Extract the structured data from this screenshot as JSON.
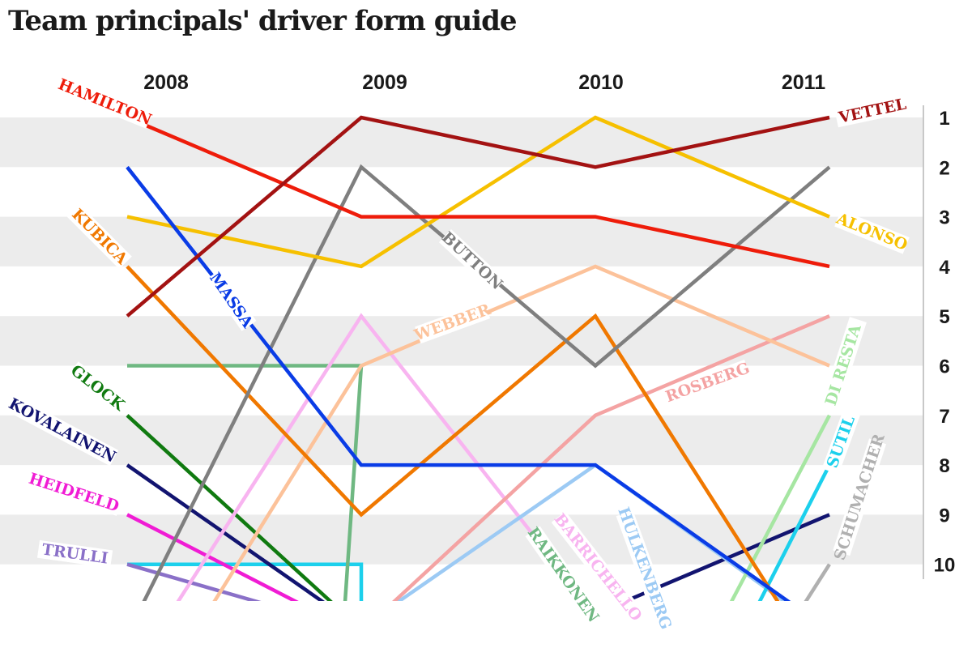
{
  "title": "Team principals' driver form guide",
  "chart_data": {
    "type": "line",
    "title": "Team principals' driver form guide",
    "x": [
      "2008",
      "2009",
      "2010",
      "2011"
    ],
    "y_axis": {
      "ticks": [
        1,
        2,
        3,
        4,
        5,
        6,
        7,
        8,
        9,
        10
      ],
      "reversed": true,
      "side": "right",
      "meaning": "ranking position"
    },
    "y_range_drawn": [
      1,
      11
    ],
    "grid": "alternating horizontal bands",
    "series": [
      {
        "name": "VETTEL",
        "color": "#a31212",
        "values": [
          5,
          1,
          2,
          1
        ]
      },
      {
        "name": "HAMILTON",
        "color": "#ee1c0a",
        "values": [
          1,
          3,
          3,
          4
        ]
      },
      {
        "name": "ALONSO",
        "color": "#f6c000",
        "values": [
          3,
          4,
          1,
          3
        ]
      },
      {
        "name": "BUTTON",
        "color": "#7f7f7f",
        "values": [
          11,
          2,
          6,
          2
        ]
      },
      {
        "name": "MASSA",
        "color": "#0a3ce6",
        "values": [
          2,
          8,
          8,
          11
        ]
      },
      {
        "name": "KUBICA",
        "color": "#f07800",
        "values": [
          4,
          9,
          5,
          11
        ]
      },
      {
        "name": "WEBBER",
        "color": "#fcc29a",
        "values": [
          11,
          6,
          4,
          6
        ]
      },
      {
        "name": "ROSBERG",
        "color": "#f4a3a3",
        "values": [
          11,
          11,
          7,
          5
        ]
      },
      {
        "name": "RAIKKONEN",
        "color": "#6fb882",
        "values": [
          6,
          6,
          11,
          null
        ]
      },
      {
        "name": "BARRICHELLO",
        "color": "#f8b4f0",
        "values": [
          11,
          5,
          11,
          null
        ]
      },
      {
        "name": "HULKENBERG",
        "color": "#9ccaf4",
        "values": [
          null,
          11,
          8,
          11
        ]
      },
      {
        "name": "GLOCK",
        "color": "#107a10",
        "values": [
          7,
          11,
          null,
          null
        ]
      },
      {
        "name": "KOVALAINEN",
        "color": "#121470",
        "values": [
          8,
          11,
          null,
          null
        ]
      },
      {
        "name": "HEIDFELD",
        "color": "#f01cd4",
        "values": [
          9,
          11,
          null,
          null
        ]
      },
      {
        "name": "TRULLI",
        "color": "#8a70c8",
        "values": [
          10,
          11,
          null,
          null
        ]
      },
      {
        "name": "DI RESTA",
        "color": "#a6e6a2",
        "values": [
          null,
          null,
          11,
          7
        ]
      },
      {
        "name": "SUTIL",
        "color": "#1cd0ec",
        "values": [
          null,
          null,
          11,
          8
        ]
      },
      {
        "name": "SCHUMACHER",
        "color": "#b0b0b0",
        "values": [
          null,
          null,
          11,
          10
        ]
      }
    ],
    "extra_segments": [
      {
        "color": "#1cd0ec",
        "from": [
          "2008",
          10
        ],
        "mid": [
          "2009",
          10
        ],
        "to": [
          "2009",
          11
        ]
      },
      {
        "color": "#121470",
        "from": [
          "2010",
          11
        ],
        "to": [
          "2011",
          9
        ]
      }
    ],
    "labels": [
      {
        "text": "VETTEL",
        "series": "VETTEL"
      },
      {
        "text": "HAMILTON",
        "series": "HAMILTON"
      },
      {
        "text": "ALONSO",
        "series": "ALONSO"
      },
      {
        "text": "BUTTON",
        "series": "BUTTON"
      },
      {
        "text": "MASSA",
        "series": "MASSA"
      },
      {
        "text": "KUBICA",
        "series": "KUBICA"
      },
      {
        "text": "WEBBER",
        "series": "WEBBER"
      },
      {
        "text": "ROSBERG",
        "series": "ROSBERG"
      },
      {
        "text": "RAIKKONEN",
        "series": "RAIKKONEN"
      },
      {
        "text": "BARRICHELLO",
        "series": "BARRICHELLO"
      },
      {
        "text": "HULKENBERG",
        "series": "HULKENBERG"
      },
      {
        "text": "GLOCK",
        "series": "GLOCK"
      },
      {
        "text": "KOVALAINEN",
        "series": "KOVALAINEN"
      },
      {
        "text": "HEIDFELD",
        "series": "HEIDFELD"
      },
      {
        "text": "TRULLI",
        "series": "TRULLI"
      },
      {
        "text": "DI RESTA",
        "series": "DI RESTA"
      },
      {
        "text": "SUTIL",
        "series": "SUTIL"
      },
      {
        "text": "SCHUMACHER",
        "series": "SCHUMACHER"
      }
    ]
  }
}
